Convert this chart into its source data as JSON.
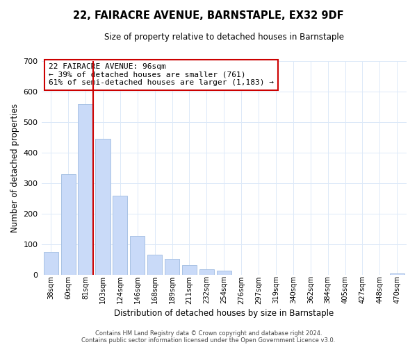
{
  "title": "22, FAIRACRE AVENUE, BARNSTAPLE, EX32 9DF",
  "subtitle": "Size of property relative to detached houses in Barnstaple",
  "xlabel": "Distribution of detached houses by size in Barnstaple",
  "ylabel": "Number of detached properties",
  "bar_labels": [
    "38sqm",
    "60sqm",
    "81sqm",
    "103sqm",
    "124sqm",
    "146sqm",
    "168sqm",
    "189sqm",
    "211sqm",
    "232sqm",
    "254sqm",
    "276sqm",
    "297sqm",
    "319sqm",
    "340sqm",
    "362sqm",
    "384sqm",
    "405sqm",
    "427sqm",
    "448sqm",
    "470sqm"
  ],
  "bar_values": [
    75,
    330,
    560,
    445,
    258,
    127,
    65,
    52,
    32,
    17,
    13,
    0,
    0,
    0,
    0,
    0,
    0,
    0,
    0,
    0,
    5
  ],
  "bar_color": "#c9daf8",
  "bar_edge_color": "#a0bce0",
  "vline_color": "#cc0000",
  "ylim": [
    0,
    700
  ],
  "yticks": [
    0,
    100,
    200,
    300,
    400,
    500,
    600,
    700
  ],
  "annotation_title": "22 FAIRACRE AVENUE: 96sqm",
  "annotation_line1": "← 39% of detached houses are smaller (761)",
  "annotation_line2": "61% of semi-detached houses are larger (1,183) →",
  "annotation_box_color": "#ffffff",
  "annotation_box_edge": "#cc0000",
  "footer1": "Contains HM Land Registry data © Crown copyright and database right 2024.",
  "footer2": "Contains public sector information licensed under the Open Government Licence v3.0.",
  "bg_color": "#ffffff",
  "grid_color": "#dce9f8"
}
